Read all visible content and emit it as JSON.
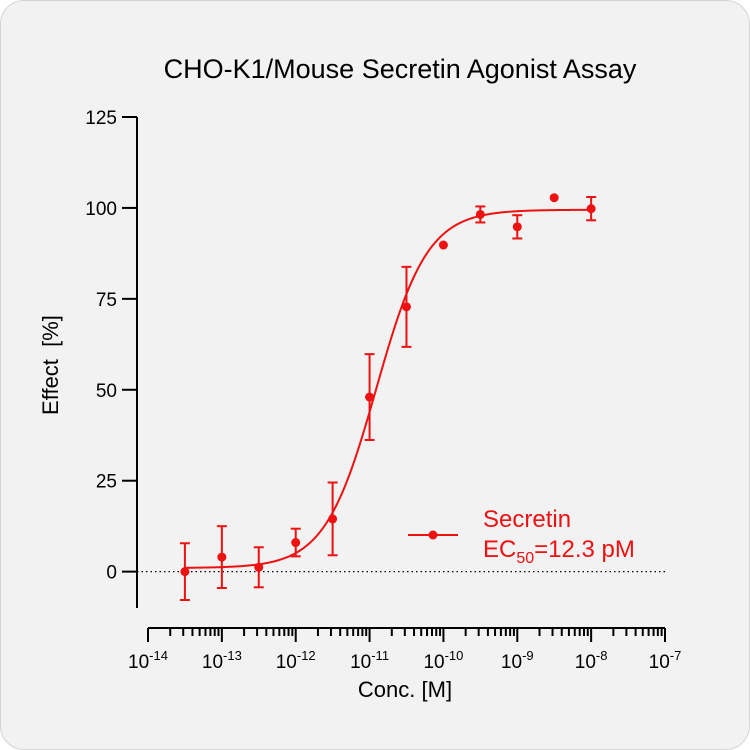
{
  "chart_data": {
    "type": "scatter",
    "title": "CHO-K1/Mouse Secretin Agonist Assay",
    "xlabel": "Conc. [M]",
    "ylabel": "Effect  [%]",
    "x_scale": "log10",
    "xlim": [
      1e-14,
      1e-07
    ],
    "ylim": [
      -10,
      125
    ],
    "yticks": [
      0,
      25,
      50,
      75,
      100,
      125
    ],
    "ytick_labels": [
      "0",
      "25",
      "50",
      "75",
      "100",
      "125"
    ],
    "xticks": [
      {
        "base": "10",
        "exp": "-14"
      },
      {
        "base": "10",
        "exp": "-13"
      },
      {
        "base": "10",
        "exp": "-12"
      },
      {
        "base": "10",
        "exp": "-11"
      },
      {
        "base": "10",
        "exp": "-10"
      },
      {
        "base": "10",
        "exp": "-9"
      },
      {
        "base": "10",
        "exp": "-8"
      },
      {
        "base": "10",
        "exp": "-7"
      }
    ],
    "baseline_y": 0,
    "grid": false,
    "legend_position": "lower-right",
    "color": "#ee1111",
    "series": [
      {
        "name": "Secretin",
        "x": [
          3.16e-14,
          1e-13,
          3.16e-13,
          1e-12,
          3.16e-12,
          1e-11,
          3.16e-11,
          1e-10,
          3.16e-10,
          1e-09,
          3.16e-09,
          1e-08
        ],
        "y": [
          0,
          4,
          1.2,
          8,
          14.5,
          48,
          72.8,
          89.8,
          98.2,
          94.8,
          102.8,
          99.8
        ],
        "error": [
          7.8,
          8.5,
          5.5,
          3.8,
          10,
          11.8,
          11,
          0,
          2.2,
          3.2,
          0,
          3.2
        ]
      }
    ],
    "fit": {
      "model": "4PL",
      "bottom": 1,
      "top": 99.5,
      "ec50": 1.23e-11,
      "hill": 1.25
    },
    "annotations": [
      {
        "text_main": "EC",
        "text_sub": "50",
        "text_tail": "=12.3 pM"
      }
    ]
  }
}
